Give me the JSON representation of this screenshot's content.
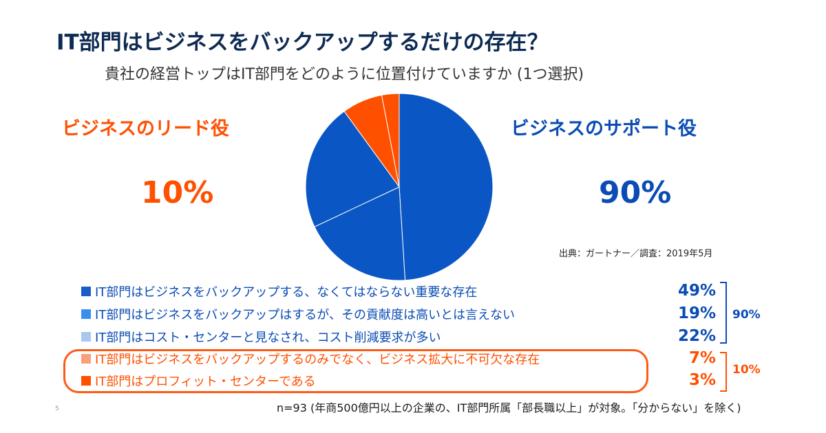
{
  "slide": {
    "title": "IT部門はビジネスをバックアップするだけの存在？",
    "subtitle": "貴社の経営トップはIT部門をどのように位置付けていますか (1つ選択)",
    "lead_label": "ビジネスのリード役",
    "lead_pct": "10%",
    "support_label": "ビジネスのサポート役",
    "support_pct": "90%",
    "source": "出典：ガートナー／調査：2019年5月",
    "group_support_pct": "90%",
    "group_lead_pct": "10%",
    "footnote": "n=93 (年商500億円以上の企業の、IT部門所属「部長職以上」が対象。「分からない」を除く)",
    "page_number": "5"
  },
  "chart_data": {
    "type": "pie",
    "categories": [
      "IT部門はビジネスをバックアップする、なくてはならない重要な存在",
      "IT部門はビジネスをバックアップはするが、その貢献度は高いとは言えない",
      "IT部門はコスト・センターと見なされ、コスト削減要求が多い",
      "IT部門はビジネスをバックアップするのみでなく、ビジネス拡大に不可欠な存在",
      "IT部門はプロフィット・センターである"
    ],
    "values": [
      49,
      19,
      22,
      7,
      3
    ],
    "value_labels": [
      "49%",
      "19%",
      "22%",
      "7%",
      "3%"
    ],
    "pie_colors": [
      "#0a56c4",
      "#0a56c4",
      "#0a56c4",
      "#ff5000",
      "#ff5000"
    ],
    "legend_swatch_colors": [
      "#1a5cc8",
      "#3a8ef0",
      "#a9c8f0",
      "#f9a07a",
      "#ff5000"
    ],
    "legend_text_colors": [
      "#0a4cb4",
      "#0a4cb4",
      "#0a4cb4",
      "#ff5000",
      "#ff5000"
    ],
    "groups": [
      {
        "name": "ビジネスのサポート役",
        "value": 90,
        "color": "#0a4cb4"
      },
      {
        "name": "ビジネスのリード役",
        "value": 10,
        "color": "#ff5000"
      }
    ],
    "legend_placement": "bottom"
  }
}
